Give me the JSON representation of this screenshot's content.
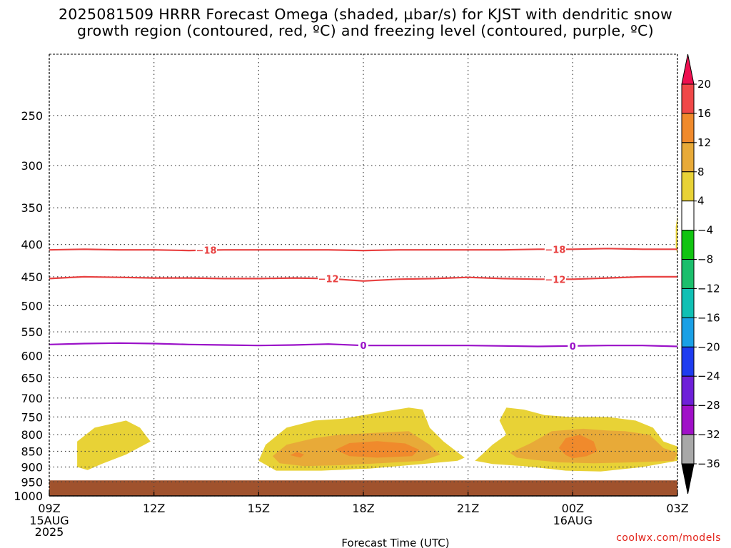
{
  "title": {
    "line1": "2025081509 HRRR Forecast Omega (shaded, µbar/s) for KJST with dendritic snow",
    "line2": "growth region (contoured, red, ºC) and freezing level (contoured, purple, ºC)"
  },
  "credit": "coolwx.com/models",
  "chart_data": {
    "type": "contour",
    "xlabel": "Forecast Time (UTC)",
    "ylabel": "",
    "y_scale": "log-pressure (hPa), inverted",
    "ylim": [
      1000,
      200
    ],
    "xlim": [
      0,
      18
    ],
    "grid": true,
    "y_ticks": [
      250,
      300,
      350,
      400,
      450,
      500,
      550,
      600,
      650,
      700,
      750,
      800,
      850,
      900,
      950,
      1000
    ],
    "x_ticks": [
      {
        "x": 0,
        "label": "09Z",
        "sub": [
          "15AUG",
          "2025"
        ]
      },
      {
        "x": 3,
        "label": "12Z",
        "sub": []
      },
      {
        "x": 6,
        "label": "15Z",
        "sub": []
      },
      {
        "x": 9,
        "label": "18Z",
        "sub": []
      },
      {
        "x": 12,
        "label": "21Z",
        "sub": []
      },
      {
        "x": 15,
        "label": "00Z",
        "sub": [
          "16AUG"
        ]
      },
      {
        "x": 18,
        "label": "03Z",
        "sub": []
      }
    ],
    "ground_fill": {
      "from_hPa": 945,
      "to_hPa": 1000,
      "color": "#a0522d"
    },
    "colorbar": {
      "levels": [
        20,
        16,
        12,
        8,
        4,
        -4,
        -8,
        -12,
        -16,
        -20,
        -24,
        -28,
        -32,
        -36
      ],
      "colors": [
        "#ee1050",
        "#f04848",
        "#f08a2c",
        "#e8aa38",
        "#e8d236",
        "#ffffff",
        "#11c411",
        "#1bbf6c",
        "#10c0b4",
        "#1aa0e6",
        "#1e3cf0",
        "#6e20d8",
        "#a010c8",
        "#a8a8a8",
        "#000000"
      ]
    },
    "contours": [
      {
        "name": "-18",
        "color": "#e84040",
        "label": "-18",
        "points": [
          [
            0,
            408
          ],
          [
            1,
            407
          ],
          [
            2,
            408
          ],
          [
            3,
            408
          ],
          [
            4,
            409
          ],
          [
            5,
            408
          ],
          [
            6,
            408
          ],
          [
            7,
            408
          ],
          [
            8,
            408
          ],
          [
            9,
            409
          ],
          [
            10,
            408
          ],
          [
            11,
            408
          ],
          [
            12,
            408
          ],
          [
            13,
            408
          ],
          [
            14,
            407
          ],
          [
            15,
            407
          ],
          [
            16,
            406
          ],
          [
            17,
            407
          ],
          [
            18,
            407
          ]
        ],
        "label_at": [
          4.5,
          14.5
        ]
      },
      {
        "name": "-12",
        "color": "#e84040",
        "label": "-12",
        "points": [
          [
            0,
            453
          ],
          [
            1,
            450
          ],
          [
            2,
            451
          ],
          [
            3,
            452
          ],
          [
            4,
            452
          ],
          [
            5,
            453
          ],
          [
            6,
            453
          ],
          [
            7,
            452
          ],
          [
            8,
            453
          ],
          [
            9,
            457
          ],
          [
            10,
            454
          ],
          [
            11,
            453
          ],
          [
            12,
            451
          ],
          [
            13,
            453
          ],
          [
            14,
            454
          ],
          [
            15,
            454
          ],
          [
            16,
            452
          ],
          [
            17,
            450
          ],
          [
            18,
            450
          ]
        ],
        "label_at": [
          8,
          14.5
        ]
      },
      {
        "name": "0",
        "color": "#9a10c8",
        "label": "0",
        "points": [
          [
            0,
            576
          ],
          [
            1,
            574
          ],
          [
            2,
            573
          ],
          [
            3,
            574
          ],
          [
            4,
            576
          ],
          [
            5,
            577
          ],
          [
            6,
            578
          ],
          [
            7,
            577
          ],
          [
            8,
            575
          ],
          [
            9,
            578
          ],
          [
            10,
            578
          ],
          [
            11,
            578
          ],
          [
            12,
            578
          ],
          [
            13,
            579
          ],
          [
            14,
            580
          ],
          [
            15,
            579
          ],
          [
            16,
            578
          ],
          [
            17,
            578
          ],
          [
            18,
            580
          ]
        ],
        "label_at": [
          9,
          15
        ]
      }
    ],
    "shaded_regions": [
      {
        "value": 4,
        "color": "#e8d236",
        "points": [
          [
            0.8,
            900
          ],
          [
            0.8,
            820
          ],
          [
            1.3,
            780
          ],
          [
            2.2,
            760
          ],
          [
            2.6,
            780
          ],
          [
            2.9,
            820
          ],
          [
            2.2,
            860
          ],
          [
            1.5,
            890
          ],
          [
            1.1,
            910
          ]
        ]
      },
      {
        "value": 4,
        "color": "#e8d236",
        "points": [
          [
            6,
            880
          ],
          [
            6.2,
            830
          ],
          [
            6.8,
            780
          ],
          [
            7.6,
            760
          ],
          [
            8.4,
            755
          ],
          [
            9.3,
            740
          ],
          [
            10.3,
            725
          ],
          [
            10.7,
            730
          ],
          [
            10.9,
            780
          ],
          [
            11.3,
            820
          ],
          [
            11.9,
            870
          ],
          [
            11.7,
            880
          ],
          [
            10.7,
            890
          ],
          [
            9.2,
            905
          ],
          [
            7.8,
            912
          ],
          [
            6.5,
            912
          ]
        ]
      },
      {
        "value": 4,
        "color": "#e8d236",
        "points": [
          [
            12.2,
            880
          ],
          [
            12.4,
            860
          ],
          [
            12.7,
            830
          ],
          [
            13.1,
            800
          ],
          [
            12.9,
            760
          ],
          [
            13.1,
            725
          ],
          [
            13.6,
            730
          ],
          [
            14.2,
            745
          ],
          [
            14.9,
            750
          ],
          [
            16.0,
            750
          ],
          [
            16.8,
            760
          ],
          [
            17.3,
            780
          ],
          [
            17.6,
            820
          ],
          [
            18.0,
            835
          ],
          [
            18.0,
            880
          ],
          [
            17.0,
            900
          ],
          [
            15.8,
            915
          ],
          [
            14.8,
            912
          ],
          [
            13.6,
            897
          ],
          [
            12.7,
            890
          ]
        ]
      },
      {
        "value": 8,
        "color": "#e8aa38",
        "points": [
          [
            6.4,
            865
          ],
          [
            6.8,
            830
          ],
          [
            7.6,
            810
          ],
          [
            8.3,
            800
          ],
          [
            9.3,
            795
          ],
          [
            10.3,
            790
          ],
          [
            10.9,
            830
          ],
          [
            11.2,
            860
          ],
          [
            10.7,
            880
          ],
          [
            9.6,
            887
          ],
          [
            8.4,
            894
          ],
          [
            7.3,
            897
          ],
          [
            6.6,
            888
          ]
        ]
      },
      {
        "value": 8,
        "color": "#e8aa38",
        "points": [
          [
            13.2,
            855
          ],
          [
            13.8,
            825
          ],
          [
            14.4,
            790
          ],
          [
            15.3,
            783
          ],
          [
            16.0,
            788
          ],
          [
            16.5,
            790
          ],
          [
            17.2,
            800
          ],
          [
            17.6,
            840
          ],
          [
            18.0,
            855
          ],
          [
            17.9,
            880
          ],
          [
            16.7,
            885
          ],
          [
            15.6,
            888
          ],
          [
            14.6,
            885
          ],
          [
            13.9,
            877
          ],
          [
            13.4,
            870
          ]
        ]
      },
      {
        "value": 12,
        "color": "#f08a2c",
        "points": [
          [
            8.2,
            845
          ],
          [
            8.6,
            825
          ],
          [
            9.4,
            819
          ],
          [
            10.2,
            826
          ],
          [
            10.6,
            845
          ],
          [
            10.4,
            865
          ],
          [
            9.4,
            870
          ],
          [
            8.6,
            865
          ]
        ]
      },
      {
        "value": 12,
        "color": "#f08a2c",
        "points": [
          [
            6.9,
            862
          ],
          [
            7.1,
            852
          ],
          [
            7.3,
            860
          ],
          [
            7.2,
            870
          ]
        ]
      },
      {
        "value": 12,
        "color": "#f08a2c",
        "points": [
          [
            14.6,
            840
          ],
          [
            14.8,
            810
          ],
          [
            15.2,
            800
          ],
          [
            15.6,
            820
          ],
          [
            15.7,
            850
          ],
          [
            15.4,
            865
          ],
          [
            15.0,
            872
          ],
          [
            14.8,
            862
          ]
        ]
      },
      {
        "value": 4,
        "color": "#e8d236",
        "points": [
          [
            18.0,
            360
          ],
          [
            17.95,
            375
          ],
          [
            17.95,
            405
          ],
          [
            18.0,
            415
          ]
        ]
      }
    ]
  }
}
